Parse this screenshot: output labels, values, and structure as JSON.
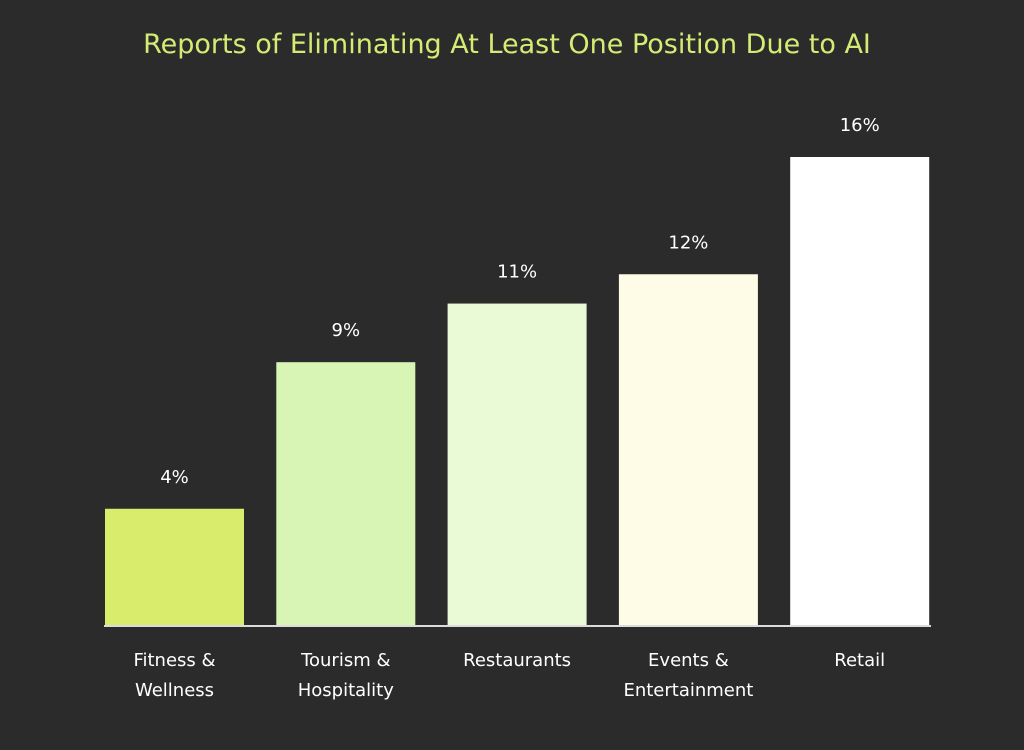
{
  "chart_data": {
    "type": "bar",
    "title": "Reports of Eliminating At Least One Position Due to AI",
    "xlabel": "",
    "ylabel": "",
    "ylim": [
      0,
      16
    ],
    "grid": false,
    "categories": [
      [
        "Fitness &",
        "Wellness"
      ],
      [
        "Tourism &",
        "Hospitality"
      ],
      [
        "Restaurants"
      ],
      [
        "Events &",
        "Entertainment"
      ],
      [
        "Retail"
      ]
    ],
    "values": [
      4,
      9,
      11,
      12,
      16
    ],
    "value_labels": [
      "4%",
      "9%",
      "11%",
      "12%",
      "16%"
    ],
    "colors": [
      "#d9ec6c",
      "#d9f5b5",
      "#eafad6",
      "#fefce6",
      "#ffffff"
    ],
    "axis_color": "#dcdcdc",
    "title_color": "#d4ec74"
  }
}
